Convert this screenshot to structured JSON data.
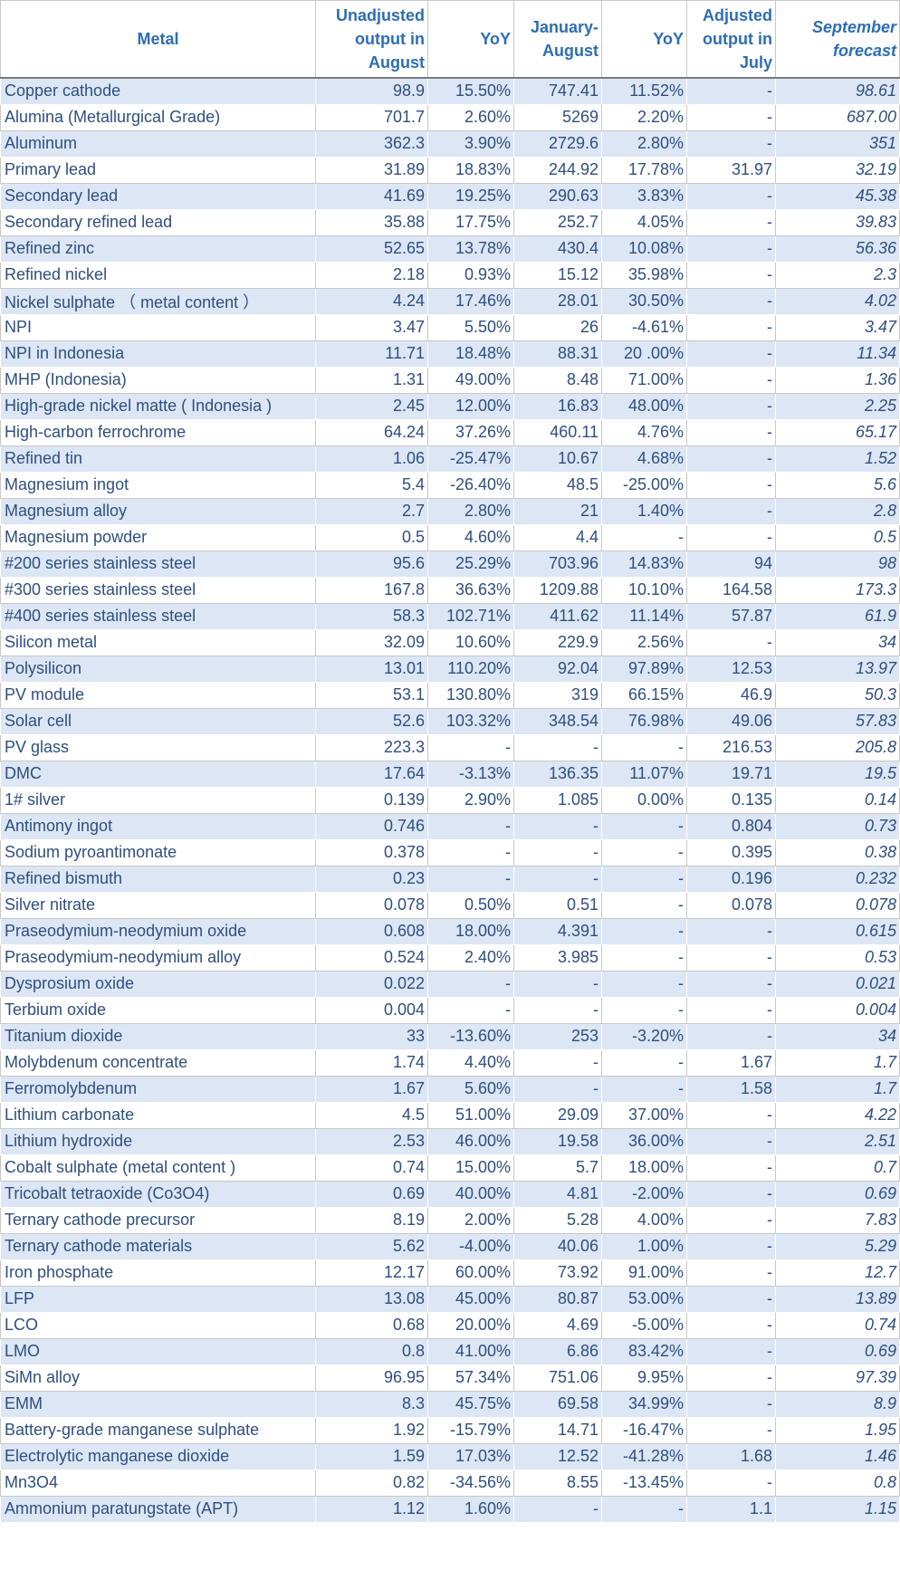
{
  "headers": {
    "metal": "Metal",
    "unadjusted": [
      "Unadjusted",
      "output in",
      "August"
    ],
    "yoy1": "YoY",
    "jan_aug": [
      "January-",
      "August"
    ],
    "yoy2": "YoY",
    "adjusted": [
      "Adjusted",
      "output in",
      "July"
    ],
    "forecast": [
      "September",
      "forecast"
    ]
  },
  "rows": [
    [
      "Copper cathode",
      "98.9",
      "15.50%",
      "747.41",
      "11.52%",
      "-",
      "98.61"
    ],
    [
      "Alumina (Metallurgical Grade)",
      "701.7",
      "2.60%",
      "5269",
      "2.20%",
      "-",
      "687.00"
    ],
    [
      "Aluminum",
      "362.3",
      "3.90%",
      "2729.6",
      "2.80%",
      "-",
      "351"
    ],
    [
      "Primary lead",
      "31.89",
      "18.83%",
      "244.92",
      "17.78%",
      "31.97",
      "32.19"
    ],
    [
      "Secondary lead",
      "41.69",
      "19.25%",
      "290.63",
      "3.83%",
      "-",
      "45.38"
    ],
    [
      "Secondary refined lead",
      "35.88",
      "17.75%",
      "252.7",
      "4.05%",
      "-",
      "39.83"
    ],
    [
      "Refined zinc",
      "52.65",
      "13.78%",
      "430.4",
      "10.08%",
      "-",
      "56.36"
    ],
    [
      "Refined nickel",
      "2.18",
      "0.93%",
      "15.12",
      "35.98%",
      "-",
      "2.3"
    ],
    [
      "Nickel sulphate （ metal content ）",
      "4.24",
      "17.46%",
      "28.01",
      "30.50%",
      "-",
      "4.02"
    ],
    [
      "NPI",
      "3.47",
      "5.50%",
      "26",
      "-4.61%",
      "-",
      "3.47"
    ],
    [
      "NPI in Indonesia",
      "11.71",
      "18.48%",
      "88.31",
      "20 .00%",
      "-",
      "11.34"
    ],
    [
      "MHP (Indonesia)",
      "1.31",
      "49.00%",
      "8.48",
      "71.00%",
      "-",
      "1.36"
    ],
    [
      "High-grade nickel matte ( Indonesia )",
      "2.45",
      "12.00%",
      "16.83",
      "48.00%",
      "-",
      "2.25"
    ],
    [
      "High-carbon ferrochrome",
      "64.24",
      "37.26%",
      "460.11",
      "4.76%",
      "-",
      "65.17"
    ],
    [
      "Refined tin",
      "1.06",
      "-25.47%",
      "10.67",
      "4.68%",
      "-",
      "1.52"
    ],
    [
      "Magnesium ingot",
      "5.4",
      "-26.40%",
      "48.5",
      "-25.00%",
      "-",
      "5.6"
    ],
    [
      "Magnesium alloy",
      "2.7",
      "2.80%",
      "21",
      "1.40%",
      "-",
      "2.8"
    ],
    [
      "Magnesium powder",
      "0.5",
      "4.60%",
      "4.4",
      "-",
      "-",
      "0.5"
    ],
    [
      "#200 series stainless steel",
      "95.6",
      "25.29%",
      "703.96",
      "14.83%",
      "94",
      "98"
    ],
    [
      "#300 series stainless steel",
      "167.8",
      "36.63%",
      "1209.88",
      "10.10%",
      "164.58",
      "173.3"
    ],
    [
      "#400 series stainless steel",
      "58.3",
      "102.71%",
      "411.62",
      "11.14%",
      "57.87",
      "61.9"
    ],
    [
      "Silicon metal",
      "32.09",
      "10.60%",
      "229.9",
      "2.56%",
      "-",
      "34"
    ],
    [
      "Polysilicon",
      "13.01",
      "110.20%",
      "92.04",
      "97.89%",
      "12.53",
      "13.97"
    ],
    [
      "PV module",
      "53.1",
      "130.80%",
      "319",
      "66.15%",
      "46.9",
      "50.3"
    ],
    [
      "Solar cell",
      "52.6",
      "103.32%",
      "348.54",
      "76.98%",
      "49.06",
      "57.83"
    ],
    [
      "PV glass",
      "223.3",
      "-",
      "-",
      "-",
      "216.53",
      "205.8"
    ],
    [
      "DMC",
      "17.64",
      "-3.13%",
      "136.35",
      "11.07%",
      "19.71",
      "19.5"
    ],
    [
      "1# silver",
      "0.139",
      "2.90%",
      "1.085",
      "0.00%",
      "0.135",
      "0.14"
    ],
    [
      "Antimony ingot",
      "0.746",
      "-",
      "-",
      "-",
      "0.804",
      "0.73"
    ],
    [
      "Sodium pyroantimonate",
      "0.378",
      "-",
      "-",
      "-",
      "0.395",
      "0.38"
    ],
    [
      "Refined bismuth",
      "0.23",
      "-",
      "-",
      "-",
      "0.196",
      "0.232"
    ],
    [
      "Silver nitrate",
      "0.078",
      "0.50%",
      "0.51",
      "-",
      "0.078",
      "0.078"
    ],
    [
      "Praseodymium-neodymium oxide",
      "0.608",
      "18.00%",
      "4.391",
      "-",
      "-",
      "0.615"
    ],
    [
      "Praseodymium-neodymium alloy",
      "0.524",
      "2.40%",
      "3.985",
      "-",
      "-",
      "0.53"
    ],
    [
      "Dysprosium oxide",
      "0.022",
      "-",
      "-",
      "-",
      "-",
      "0.021"
    ],
    [
      "Terbium oxide",
      "0.004",
      "-",
      "-",
      "-",
      "-",
      "0.004"
    ],
    [
      "Titanium dioxide",
      "33",
      "-13.60%",
      "253",
      "-3.20%",
      "-",
      "34"
    ],
    [
      "Molybdenum concentrate",
      "1.74",
      "4.40%",
      "-",
      "-",
      "1.67",
      "1.7"
    ],
    [
      "Ferromolybdenum",
      "1.67",
      "5.60%",
      "-",
      "-",
      "1.58",
      "1.7"
    ],
    [
      "Lithium carbonate",
      "4.5",
      "51.00%",
      "29.09",
      "37.00%",
      "-",
      "4.22"
    ],
    [
      "Lithium hydroxide",
      "2.53",
      "46.00%",
      "19.58",
      "36.00%",
      "-",
      "2.51"
    ],
    [
      "Cobalt sulphate (metal content )",
      "0.74",
      "15.00%",
      "5.7",
      "18.00%",
      "-",
      "0.7"
    ],
    [
      "Tricobalt tetraoxide (Co3O4)",
      "0.69",
      "40.00%",
      "4.81",
      "-2.00%",
      "-",
      "0.69"
    ],
    [
      "Ternary cathode precursor",
      "8.19",
      "2.00%",
      "5.28",
      "4.00%",
      "-",
      "7.83"
    ],
    [
      "Ternary cathode materials",
      "5.62",
      "-4.00%",
      "40.06",
      "1.00%",
      "-",
      "5.29"
    ],
    [
      "Iron phosphate",
      "12.17",
      "60.00%",
      "73.92",
      "91.00%",
      "-",
      "12.7"
    ],
    [
      "LFP",
      "13.08",
      "45.00%",
      "80.87",
      "53.00%",
      "-",
      "13.89"
    ],
    [
      "LCO",
      "0.68",
      "20.00%",
      "4.69",
      "-5.00%",
      "-",
      "0.74"
    ],
    [
      "LMO",
      "0.8",
      "41.00%",
      "6.86",
      "83.42%",
      "-",
      "0.69"
    ],
    [
      "SiMn alloy",
      "96.95",
      "57.34%",
      "751.06",
      "9.95%",
      "-",
      "97.39"
    ],
    [
      "EMM",
      "8.3",
      "45.75%",
      "69.58",
      "34.99%",
      "-",
      "8.9"
    ],
    [
      "Battery-grade manganese sulphate",
      "1.92",
      "-15.79%",
      "14.71",
      "-16.47%",
      "-",
      "1.95"
    ],
    [
      "Electrolytic manganese dioxide",
      "1.59",
      "17.03%",
      "12.52",
      "-41.28%",
      "1.68",
      "1.46"
    ],
    [
      "Mn3O4",
      "0.82",
      "-34.56%",
      "8.55",
      "-13.45%",
      "-",
      "0.8"
    ],
    [
      "Ammonium paratungstate (APT)",
      "1.12",
      "1.60%",
      "-",
      "-",
      "1.1",
      "1.15"
    ]
  ],
  "colors": {
    "header_text": "#2e6db4",
    "cell_text": "#2e4f80",
    "band": "#dce6f4"
  }
}
